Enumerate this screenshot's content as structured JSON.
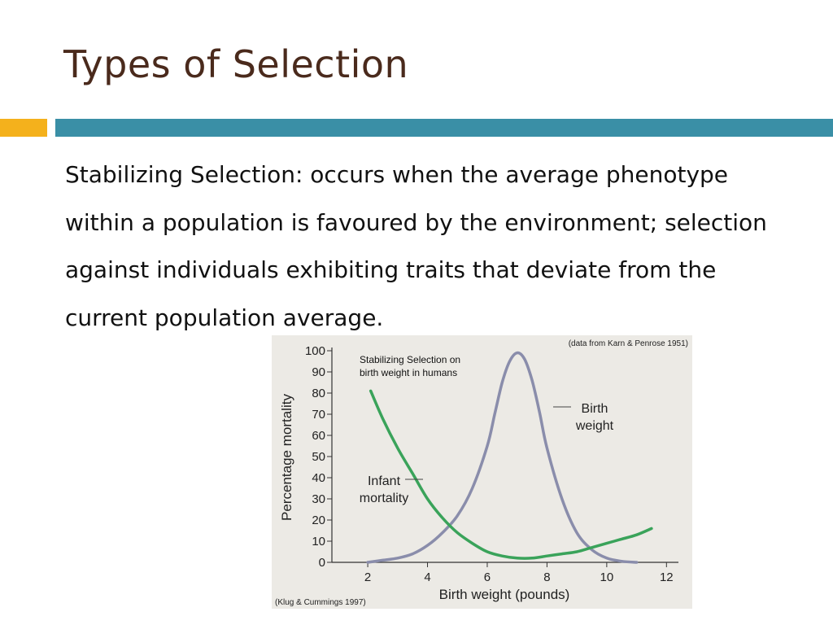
{
  "slide": {
    "title": "Types of Selection",
    "body": "Stabilizing Selection: occurs when the average phenotype within a population is favoured by the environment; selection against individuals exhibiting traits that deviate from the current population average."
  },
  "colors": {
    "title": "#4a2a1c",
    "accent_orange": "#f4b11c",
    "accent_teal": "#3a8fa6",
    "infant_mortality": "#3aa35a",
    "birth_weight": "#8a8dab"
  },
  "chart_data": {
    "type": "line",
    "title_lines": [
      "Stabilizing Selection on",
      "birth weight in humans"
    ],
    "source_top": "(data from Karn & Penrose 1951)",
    "source_bottom": "(Klug & Cummings 1997)",
    "xlabel": "Birth weight (pounds)",
    "ylabel": "Percentage mortality",
    "xlim": [
      0.8,
      12.4
    ],
    "ylim": [
      0,
      100
    ],
    "xticks": [
      2,
      4,
      6,
      8,
      10,
      12
    ],
    "yticks": [
      0,
      10,
      20,
      30,
      40,
      50,
      60,
      70,
      80,
      90,
      100
    ],
    "series": [
      {
        "name": "Infant mortality",
        "label_lines": [
          "Infant",
          "mortality"
        ],
        "color": "#3aa35a",
        "x": [
          2.1,
          2.5,
          3.0,
          3.5,
          4.0,
          4.5,
          5.0,
          5.5,
          6.0,
          6.5,
          7.0,
          7.5,
          8.0,
          8.5,
          9.0,
          9.5,
          10.0,
          10.5,
          11.0,
          11.5
        ],
        "y": [
          81,
          68,
          54,
          42,
          30,
          21,
          14,
          9,
          5,
          3,
          2,
          2,
          3,
          4,
          5,
          7,
          9,
          11,
          13,
          16
        ]
      },
      {
        "name": "Birth weight",
        "label_lines": [
          "Birth",
          "weight"
        ],
        "color": "#8a8dab",
        "x": [
          2.0,
          2.5,
          3.0,
          3.5,
          4.0,
          4.5,
          5.0,
          5.5,
          6.0,
          6.25,
          6.5,
          6.75,
          7.0,
          7.25,
          7.5,
          7.75,
          8.0,
          8.5,
          9.0,
          9.5,
          10.0,
          10.5,
          11.0
        ],
        "y": [
          0,
          1,
          2,
          4,
          8,
          14,
          22,
          35,
          55,
          70,
          85,
          95,
          99,
          96,
          86,
          71,
          54,
          30,
          14,
          6,
          2,
          0.5,
          0
        ]
      }
    ]
  }
}
